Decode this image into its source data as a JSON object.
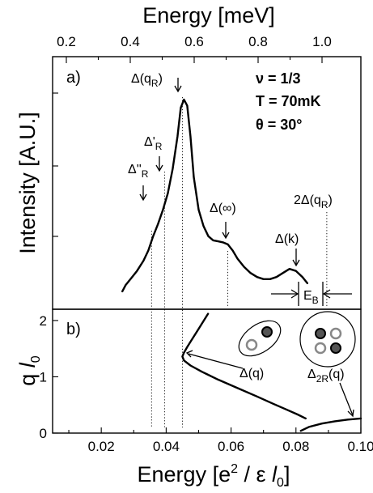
{
  "chart_data": [
    {
      "type": "line",
      "panel": "a)",
      "top_axis": {
        "label": "Energy [meV]",
        "ticks": [
          "0.2",
          "0.4",
          "0.6",
          "0.8",
          "1.0"
        ],
        "tick_values": [
          0.2,
          0.4,
          0.6,
          0.8,
          1.0
        ]
      },
      "ylabel": "Intensity [A.U.]",
      "xlim": [
        0.005,
        0.1
      ],
      "series": [
        {
          "x": [
            0.0265,
            0.0275,
            0.029,
            0.031,
            0.033,
            0.0345,
            0.036,
            0.0375,
            0.039,
            0.0405,
            0.042,
            0.0435,
            0.0445,
            0.0455,
            0.0465,
            0.0475,
            0.0485,
            0.05,
            0.0515,
            0.053,
            0.0545,
            0.056,
            0.0575,
            0.059,
            0.0605,
            0.062,
            0.064,
            0.066,
            0.068,
            0.07,
            0.072,
            0.074,
            0.076,
            0.078,
            0.08,
            0.082,
            0.083,
            0.0835
          ],
          "y": [
            0.06,
            0.09,
            0.12,
            0.16,
            0.21,
            0.26,
            0.33,
            0.39,
            0.46,
            0.54,
            0.66,
            0.82,
            0.96,
            1.0,
            0.97,
            0.82,
            0.62,
            0.46,
            0.38,
            0.33,
            0.31,
            0.305,
            0.3,
            0.29,
            0.26,
            0.22,
            0.18,
            0.15,
            0.13,
            0.12,
            0.12,
            0.13,
            0.15,
            0.17,
            0.16,
            0.13,
            0.11,
            0.1
          ]
        }
      ],
      "reference_lines_x": [
        0.0355,
        0.0395,
        0.045,
        0.059,
        0.0895
      ],
      "annotations": {
        "peak": "Δ(q",
        "peak_sub": "R",
        "peak_tail": ")",
        "r_prime": "Δ'",
        "r_prime_sub": "R",
        "r_dprime": "Δ''",
        "r_dprime_sub": "R",
        "infinity": "Δ(∞)",
        "k": "Δ(k)",
        "two_delta": "2Δ(q",
        "two_delta_sub": "R",
        "two_delta_tail": ")",
        "eb": "E",
        "eb_sub": "B"
      },
      "params": {
        "nu": "ν = 1/3",
        "temperature": "T = 70mK",
        "theta": "θ = 30°"
      }
    },
    {
      "type": "line",
      "panel": "b)",
      "xlabel_parts": [
        "Energy [e",
        "2",
        " / ε ",
        "l",
        "0",
        "]"
      ],
      "ylabel_parts": [
        "q ",
        "l",
        "0"
      ],
      "x_ticks": [
        "0.02",
        "0.04",
        "0.06",
        "0.08",
        "0.10"
      ],
      "x_tick_values": [
        0.02,
        0.04,
        0.06,
        0.08,
        0.1
      ],
      "y_ticks": [
        "0",
        "1",
        "2"
      ],
      "y_tick_values": [
        0,
        1,
        2
      ],
      "xlim": [
        0.005,
        0.1
      ],
      "ylim": [
        0,
        2.2
      ],
      "series": [
        {
          "name_parts": [
            "Δ(q)"
          ],
          "x": [
            0.0529,
            0.05,
            0.048,
            0.0465,
            0.0455,
            0.045,
            0.0455,
            0.0475,
            0.051,
            0.056,
            0.062,
            0.068,
            0.073,
            0.077,
            0.0805,
            0.083
          ],
          "y": [
            2.12,
            1.85,
            1.67,
            1.53,
            1.43,
            1.36,
            1.29,
            1.2,
            1.09,
            0.95,
            0.8,
            0.65,
            0.52,
            0.42,
            0.33,
            0.26
          ]
        },
        {
          "name_parts": [
            "Δ",
            "2R",
            "(q)"
          ],
          "x": [
            0.0815,
            0.084,
            0.088,
            0.092,
            0.096,
            0.1
          ],
          "y": [
            0.04,
            0.11,
            0.17,
            0.21,
            0.24,
            0.26
          ]
        }
      ],
      "labels": {
        "dq": "Δ(q)",
        "d2r": "Δ",
        "d2r_sub": "2R",
        "d2r_tail": "(q)"
      }
    }
  ]
}
